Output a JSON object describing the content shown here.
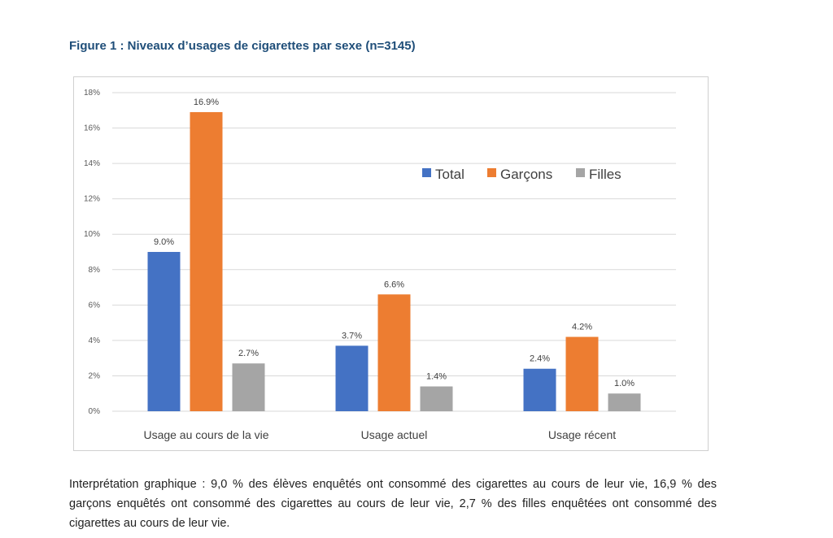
{
  "figure": {
    "title": "Figure 1 : Niveaux d’usages de cigarettes par sexe (n=3145)"
  },
  "interpretation": "Interprétation graphique : 9,0 % des élèves enquêtés ont consommé des cigarettes au cours de leur vie, 16,9 % des garçons enquêtés ont consommé des cigarettes au cours de leur vie, 2,7 % des filles enquêtées ont consommé des cigarettes au cours de leur vie.",
  "chart_data": {
    "type": "bar",
    "categories": [
      "Usage au cours de la vie",
      "Usage actuel",
      "Usage récent"
    ],
    "series": [
      {
        "name": "Total",
        "values": [
          9.0,
          3.7,
          2.4
        ],
        "labels": [
          "9.0%",
          "3.7%",
          "2.4%"
        ],
        "color": "#4472c4"
      },
      {
        "name": "Garçons",
        "values": [
          16.9,
          6.6,
          4.2
        ],
        "labels": [
          "16.9%",
          "6.6%",
          "4.2%"
        ],
        "color": "#ed7d31"
      },
      {
        "name": "Filles",
        "values": [
          2.7,
          1.4,
          1.0
        ],
        "labels": [
          "2.7%",
          "1.4%",
          "1.0%"
        ],
        "color": "#a5a5a5"
      }
    ],
    "yticks": [
      "0%",
      "2%",
      "4%",
      "6%",
      "8%",
      "10%",
      "12%",
      "14%",
      "16%",
      "18%"
    ],
    "ylim": [
      0,
      18
    ],
    "grid": true,
    "gridColor": "#d9d9d9",
    "legend_position": "top-right"
  }
}
